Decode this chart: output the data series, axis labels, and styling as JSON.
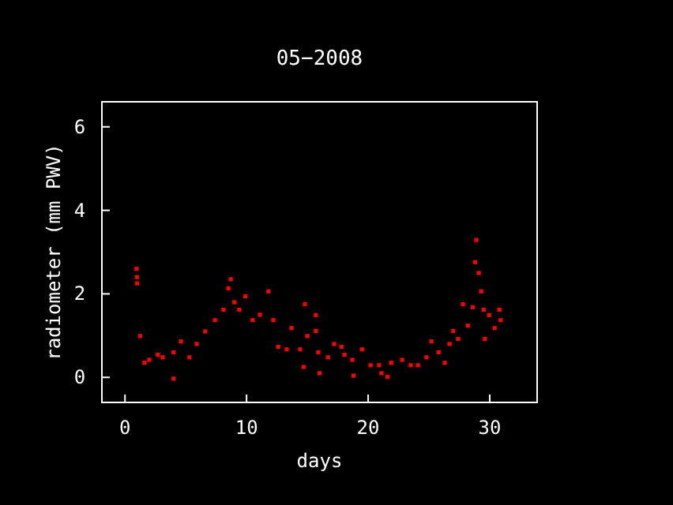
{
  "chart_data": {
    "type": "scatter",
    "title": "05−2008",
    "xlabel": "days",
    "ylabel": "radiometer (mm PWV)",
    "marker": "square",
    "grid": false,
    "xlim": [
      -1.9,
      33.9
    ],
    "xticks": [
      0,
      10,
      20,
      30
    ],
    "ylim": [
      -0.6,
      6.6
    ],
    "yticks": [
      0,
      2,
      4,
      6
    ],
    "series": [
      {
        "color": "#ff0000",
        "x": [
          0.95,
          0.98,
          1.0,
          1.25,
          1.6,
          2.0,
          2.7,
          3.1,
          4.0,
          4.0,
          4.6,
          5.3,
          5.9,
          6.6,
          7.4,
          8.1,
          8.5,
          8.7,
          9.0,
          9.4,
          9.9,
          10.5,
          11.1,
          11.8,
          12.2,
          12.6,
          13.3,
          13.7,
          14.4,
          14.7,
          14.8,
          15.0,
          15.7,
          15.7,
          15.9,
          16.0,
          16.7,
          17.2,
          17.8,
          18.05,
          18.7,
          18.8,
          19.5,
          20.2,
          20.9,
          21.1,
          21.6,
          21.9,
          22.8,
          23.5,
          24.1,
          24.8,
          25.2,
          25.8,
          26.3,
          26.7,
          27.0,
          27.4,
          27.8,
          28.2,
          28.6,
          28.8,
          28.9,
          29.1,
          29.3,
          29.5,
          29.6,
          29.95,
          30.4,
          30.8,
          30.9
        ],
        "values": [
          2.6,
          2.4,
          2.25,
          0.99,
          0.35,
          0.42,
          0.54,
          0.48,
          -0.03,
          0.6,
          0.86,
          0.48,
          0.8,
          1.1,
          1.37,
          1.62,
          2.13,
          2.35,
          1.8,
          1.62,
          1.94,
          1.37,
          1.5,
          2.06,
          1.37,
          0.73,
          0.67,
          1.18,
          0.67,
          0.25,
          1.75,
          0.99,
          1.11,
          1.49,
          0.6,
          0.1,
          0.48,
          0.8,
          0.73,
          0.54,
          0.42,
          0.04,
          0.67,
          0.29,
          0.29,
          0.1,
          0.01,
          0.35,
          0.42,
          0.29,
          0.29,
          0.48,
          0.86,
          0.6,
          0.35,
          0.8,
          1.11,
          0.92,
          1.75,
          1.24,
          1.68,
          2.76,
          3.29,
          2.5,
          2.06,
          1.62,
          0.92,
          1.49,
          1.18,
          1.62,
          1.37
        ]
      }
    ]
  }
}
